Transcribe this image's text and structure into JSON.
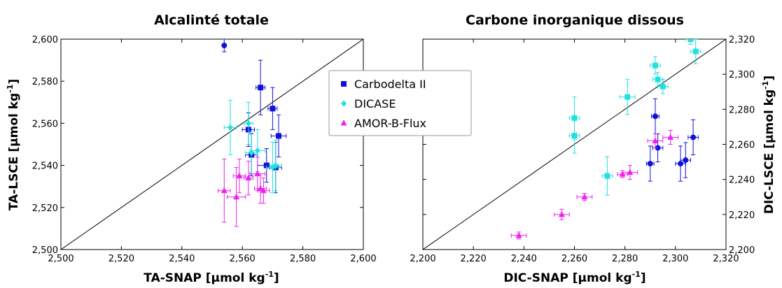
{
  "chart_data": [
    {
      "type": "scatter",
      "title": "Alcalinté totale",
      "xlabel": "TA-SNAP [µmol kg",
      "xlabel_sup": "-1",
      "xlabel_end": "]",
      "ylabel": "TA-LSCE [µmol kg",
      "ylabel_sup": "-1",
      "ylabel_end": "]",
      "xlim": [
        2500,
        2600
      ],
      "ylim": [
        2500,
        2600
      ],
      "xticks": [
        "2,500",
        "2,520",
        "2,540",
        "2,560",
        "2,580",
        "2,600"
      ],
      "yticks": [
        "2,500",
        "2,520",
        "2,540",
        "2,560",
        "2,580",
        "2,600"
      ],
      "identity_line": true,
      "series": [
        {
          "name": "Carbodelta II",
          "marker": "square",
          "color": "#1010d8",
          "points": [
            [
              2566,
              2577,
              1.5,
              13
            ],
            [
              2570,
              2567,
              1.5,
              10
            ],
            [
              2562,
              2557,
              2,
              8
            ],
            [
              2563,
              2545,
              2,
              10
            ],
            [
              2572,
              2554,
              2.5,
              10
            ],
            [
              2571,
              2539,
              2,
              12
            ],
            [
              2568,
              2540,
              3,
              8
            ]
          ]
        },
        {
          "name": "DICASE",
          "marker": "diamond",
          "color": "#22e0e0",
          "points": [
            [
              2556,
              2558,
              2,
              13
            ],
            [
              2563,
              2546,
              2,
              10
            ],
            [
              2565,
              2547,
              2.5,
              10
            ],
            [
              2570,
              2539,
              2,
              12
            ],
            [
              2571,
              2540,
              2,
              12
            ],
            [
              2562,
              2560,
              1.5,
              10
            ]
          ]
        },
        {
          "name": "AMOR-B-Flux",
          "marker": "triangle",
          "color": "#ee22ee",
          "points": [
            [
              2554,
              2528,
              2,
              15
            ],
            [
              2558,
              2525,
              3,
              14
            ],
            [
              2559,
              2535,
              2,
              8
            ],
            [
              2565,
              2536,
              2.5,
              8
            ],
            [
              2566,
              2529,
              2,
              7
            ],
            [
              2567,
              2528,
              2,
              6
            ],
            [
              2562,
              2534,
              1.5,
              8
            ]
          ]
        },
        {
          "name": "",
          "marker": "circle",
          "color": "#1010d8",
          "points": [
            [
              2554,
              2597,
              0.5,
              3
            ]
          ]
        }
      ]
    },
    {
      "type": "scatter",
      "title": "Carbone inorganique dissous",
      "xlabel": "DIC-SNAP [µmol kg",
      "xlabel_sup": "-1",
      "xlabel_end": "]",
      "ylabel": "DIC-LSCE [µmol kg",
      "ylabel_sup": "-1",
      "ylabel_end": "]",
      "xlim": [
        2200,
        2320
      ],
      "ylim": [
        2200,
        2320
      ],
      "xticks": [
        "2,200",
        "2,220",
        "2,240",
        "2,260",
        "2,280",
        "2,300",
        "2,320"
      ],
      "yticks": [
        "2,200",
        "2,220",
        "2,240",
        "2,260",
        "2,280",
        "2,300",
        "2,320"
      ],
      "identity_line": true,
      "series": [
        {
          "name": "Carbodelta II",
          "marker": "circle",
          "color": "#1010d8",
          "points": [
            [
              2290,
              2249,
              1.5,
              10
            ],
            [
              2292,
              2276,
              1.5,
              10
            ],
            [
              2293,
              2258,
              2,
              8
            ],
            [
              2302,
              2249,
              2,
              10
            ],
            [
              2304,
              2251,
              2,
              10
            ],
            [
              2307,
              2264,
              2,
              10
            ]
          ]
        },
        {
          "name": "DICASE",
          "marker": "square",
          "color": "#22e0e0",
          "points": [
            [
              2260,
              2275,
              2,
              12
            ],
            [
              2260,
              2265,
              2,
              10
            ],
            [
              2273,
              2242,
              2,
              11
            ],
            [
              2281,
              2287,
              3,
              10
            ],
            [
              2292,
              2305,
              2,
              5
            ],
            [
              2293,
              2297,
              2,
              4
            ],
            [
              2295,
              2293,
              2,
              4
            ],
            [
              2308,
              2313,
              2,
              7
            ],
            [
              2306,
              2320,
              2,
              3
            ]
          ]
        },
        {
          "name": "AMOR-B-Flux",
          "marker": "triangle",
          "color": "#ee22ee",
          "points": [
            [
              2238,
              2208,
              3,
              2
            ],
            [
              2255,
              2220,
              3,
              3
            ],
            [
              2264,
              2230,
              3,
              2
            ],
            [
              2279,
              2243,
              2,
              2
            ],
            [
              2282,
              2244,
              3,
              4
            ],
            [
              2292,
              2262,
              3,
              4
            ],
            [
              2298,
              2264,
              3,
              4
            ]
          ]
        }
      ]
    }
  ],
  "legend": {
    "items": [
      {
        "label": "Carbodelta II",
        "marker": "square",
        "color": "#1010d8"
      },
      {
        "label": "DICASE",
        "marker": "diamond",
        "color": "#22e0e0"
      },
      {
        "label": "AMOR-B-Flux",
        "marker": "triangle",
        "color": "#ee22ee"
      }
    ]
  }
}
